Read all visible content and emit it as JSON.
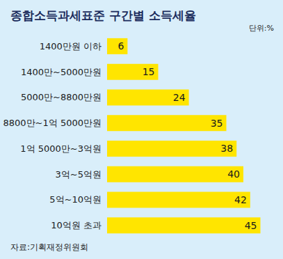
{
  "chart_data": {
    "type": "bar",
    "orientation": "horizontal",
    "title": "종합소득과세표준 구간별 소득세율",
    "subtitle": "단위:%",
    "annotations": [
      "자료:기획재정위원회"
    ],
    "categories": [
      "1400만원 이하",
      "1400만~5000만원",
      "5000만~8800만원",
      "8800만~1억 5000만원",
      "1억 5000만~3억원",
      "3억~5억원",
      "5억~10억원",
      "10억원 초과"
    ],
    "values": [
      6,
      15,
      24,
      35,
      38,
      40,
      42,
      45
    ],
    "color": "#ffe500",
    "xlim": [
      0,
      50
    ],
    "grid": false,
    "data_labels": true,
    "tick_labels": "y"
  }
}
